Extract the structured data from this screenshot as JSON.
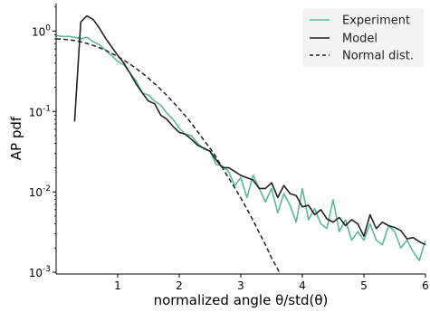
{
  "chart_data": {
    "type": "line",
    "xlabel": "normalized angle θ/std(θ)",
    "ylabel": "AP pdf",
    "x_ticks": [
      1,
      2,
      3,
      4,
      5,
      6
    ],
    "x_tick_labels": [
      "1",
      "2",
      "3",
      "4",
      "5",
      "6"
    ],
    "y_scale": "log",
    "y_tick_bases": [
      "10",
      "10",
      "10",
      "10"
    ],
    "y_tick_exponents": [
      "0",
      "-1",
      "-2",
      "-3"
    ],
    "y_tick_values": [
      1,
      0.1,
      0.01,
      0.001
    ],
    "xlim": [
      0.0,
      6.0
    ],
    "ylim": [
      0.00095,
      2.2
    ],
    "grid": false,
    "legend_position": "top-right",
    "series": [
      {
        "name": "Experiment",
        "color": "#5cb899",
        "style": "solid",
        "x": [
          0.0,
          0.1,
          0.2,
          0.3,
          0.4,
          0.5,
          0.6,
          0.7,
          0.8,
          0.9,
          1.0,
          1.1,
          1.2,
          1.3,
          1.4,
          1.5,
          1.6,
          1.7,
          1.8,
          1.9,
          2.0,
          2.1,
          2.2,
          2.3,
          2.4,
          2.5,
          2.6,
          2.7,
          2.8,
          2.9,
          3.0,
          3.1,
          3.2,
          3.3,
          3.4,
          3.5,
          3.6,
          3.7,
          3.8,
          3.9,
          4.0,
          4.1,
          4.2,
          4.3,
          4.4,
          4.5,
          4.6,
          4.7,
          4.8,
          4.9,
          5.0,
          5.1,
          5.2,
          5.3,
          5.4,
          5.5,
          5.6,
          5.7,
          5.8,
          5.9,
          6.0
        ],
        "values": [
          0.88,
          0.86,
          0.86,
          0.84,
          0.8,
          0.84,
          0.74,
          0.68,
          0.58,
          0.5,
          0.42,
          0.38,
          0.3,
          0.24,
          0.17,
          0.16,
          0.135,
          0.12,
          0.095,
          0.08,
          0.062,
          0.052,
          0.05,
          0.04,
          0.034,
          0.032,
          0.022,
          0.021,
          0.018,
          0.012,
          0.015,
          0.0085,
          0.016,
          0.011,
          0.0075,
          0.011,
          0.0055,
          0.0095,
          0.0068,
          0.0042,
          0.011,
          0.0045,
          0.0062,
          0.004,
          0.0035,
          0.008,
          0.0032,
          0.0045,
          0.0025,
          0.0032,
          0.0025,
          0.004,
          0.0025,
          0.0022,
          0.0038,
          0.0032,
          0.002,
          0.0025,
          0.0018,
          0.0014,
          0.0025
        ]
      },
      {
        "name": "Model",
        "color": "#222222",
        "style": "solid",
        "x": [
          0.3,
          0.4,
          0.5,
          0.6,
          0.7,
          0.8,
          0.9,
          1.0,
          1.1,
          1.2,
          1.3,
          1.4,
          1.5,
          1.6,
          1.7,
          1.8,
          1.9,
          2.0,
          2.1,
          2.2,
          2.3,
          2.4,
          2.5,
          2.6,
          2.7,
          2.8,
          2.9,
          3.0,
          3.1,
          3.2,
          3.3,
          3.4,
          3.5,
          3.6,
          3.7,
          3.8,
          3.9,
          4.0,
          4.1,
          4.2,
          4.3,
          4.4,
          4.5,
          4.6,
          4.7,
          4.8,
          4.9,
          5.0,
          5.1,
          5.2,
          5.3,
          5.4,
          5.5,
          5.6,
          5.7,
          5.8,
          5.9,
          6.0
        ],
        "values": [
          0.075,
          1.3,
          1.55,
          1.4,
          1.1,
          0.82,
          0.64,
          0.5,
          0.4,
          0.3,
          0.22,
          0.17,
          0.135,
          0.125,
          0.09,
          0.08,
          0.065,
          0.055,
          0.052,
          0.045,
          0.038,
          0.035,
          0.032,
          0.025,
          0.02,
          0.02,
          0.018,
          0.016,
          0.015,
          0.014,
          0.011,
          0.011,
          0.013,
          0.0085,
          0.012,
          0.0095,
          0.009,
          0.0065,
          0.0068,
          0.0052,
          0.006,
          0.0046,
          0.0042,
          0.0048,
          0.0038,
          0.0045,
          0.004,
          0.0028,
          0.0052,
          0.0035,
          0.0042,
          0.0038,
          0.0036,
          0.0033,
          0.0026,
          0.0027,
          0.0024,
          0.0022
        ]
      },
      {
        "name": "Normal dist.",
        "color": "#222222",
        "style": "dashed",
        "x": [
          0.0,
          0.1,
          0.2,
          0.3,
          0.4,
          0.5,
          0.6,
          0.7,
          0.8,
          0.9,
          1.0,
          1.1,
          1.2,
          1.3,
          1.4,
          1.5,
          1.6,
          1.7,
          1.8,
          1.9,
          2.0,
          2.1,
          2.2,
          2.3,
          2.4,
          2.5,
          2.6,
          2.7,
          2.8,
          2.9,
          3.0,
          3.1,
          3.2,
          3.3,
          3.4,
          3.5,
          3.6,
          3.7
        ],
        "values": [
          0.798,
          0.794,
          0.782,
          0.763,
          0.737,
          0.704,
          0.666,
          0.624,
          0.579,
          0.531,
          0.484,
          0.435,
          0.388,
          0.343,
          0.3,
          0.259,
          0.222,
          0.188,
          0.158,
          0.131,
          0.108,
          0.088,
          0.071,
          0.056,
          0.044,
          0.035,
          0.027,
          0.02,
          0.015,
          0.0113,
          0.0084,
          0.0061,
          0.0044,
          0.0031,
          0.0022,
          0.0015,
          0.0011,
          0.00072
        ]
      }
    ]
  }
}
